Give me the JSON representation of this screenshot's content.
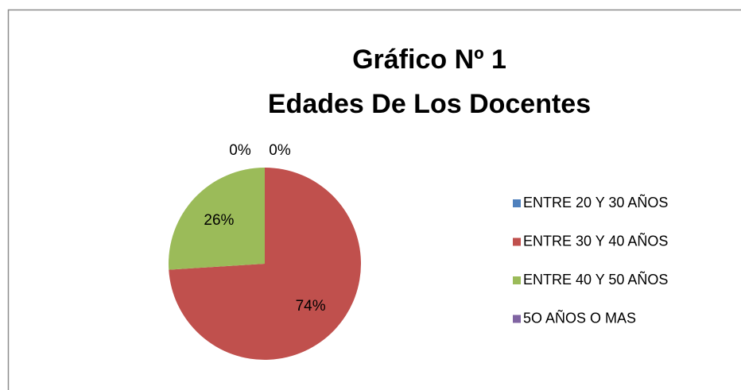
{
  "chart_data": {
    "type": "pie",
    "title": [
      "Gráfico  Nº 1",
      "Edades De Los Docentes"
    ],
    "categories": [
      "ENTRE 20 Y 30 AÑOS",
      "ENTRE 30 Y 40 AÑOS",
      "ENTRE 40 Y 50 AÑOS",
      "5O AÑOS O MAS"
    ],
    "values": [
      0,
      74,
      26,
      0
    ],
    "value_labels": [
      "0%",
      "74%",
      "26%",
      "0%"
    ],
    "colors": [
      "#4f81bd",
      "#c0504d",
      "#9bbb59",
      "#8064a2"
    ],
    "legend": "right"
  }
}
